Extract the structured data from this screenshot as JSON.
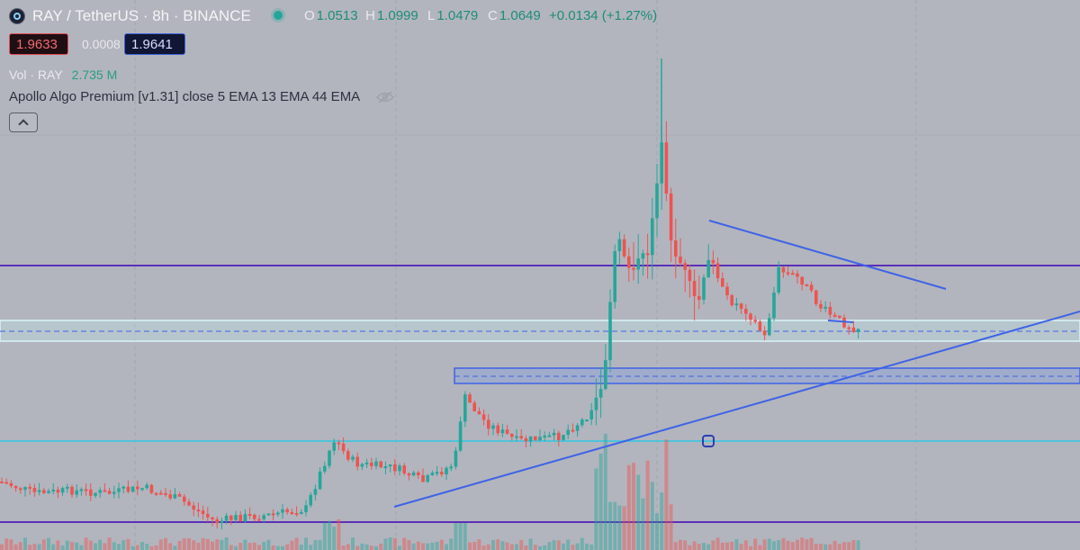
{
  "header": {
    "title": "RAY / TetherUS · 8h · BINANCE",
    "ohlc": [
      {
        "key": "O",
        "value": "1.0513"
      },
      {
        "key": "H",
        "value": "1.0999"
      },
      {
        "key": "L",
        "value": "1.0479"
      },
      {
        "key": "C",
        "value": "1.0649"
      },
      {
        "key": "",
        "value": "+0.0134 (+1.27%)"
      }
    ]
  },
  "quote": {
    "bid": "1.9633",
    "spread": "0.0008",
    "ask": "1.9641"
  },
  "volume": {
    "label": "Vol · RAY",
    "value": "2.735 M"
  },
  "indicator": {
    "label": "Apollo Algo Premium [v1.31] close 5 EMA 13 EMA 44 EMA"
  },
  "colors": {
    "up": "#26a69a",
    "down": "#ef5350",
    "trendline": "#3f63e6",
    "level_purple": "#5b2fb8",
    "level_cyan": "#4fc3d9",
    "background": "#b2b5be"
  },
  "icons": {
    "logo": "raydium-logo-icon",
    "live": "live-status-dot-icon",
    "hide": "eye-slash-icon",
    "collapse": "chevron-up-icon"
  }
}
